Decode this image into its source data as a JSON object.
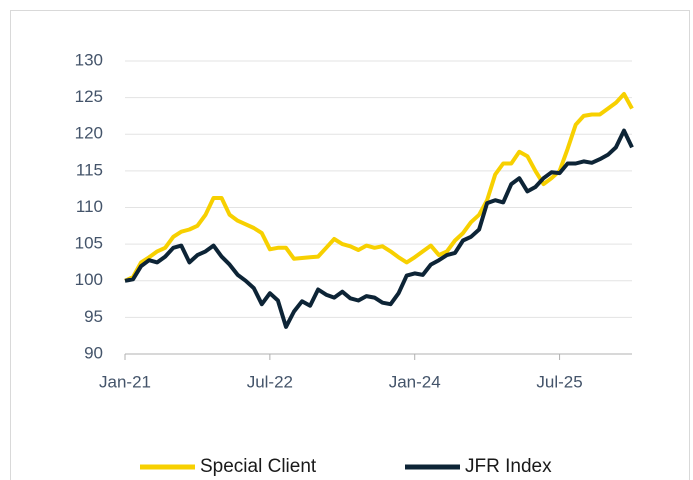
{
  "chart_data": {
    "type": "line",
    "categories": [
      "Jan-21",
      null,
      null,
      null,
      null,
      null,
      null,
      null,
      null,
      null,
      null,
      null,
      null,
      null,
      null,
      null,
      null,
      null,
      "Jul-22",
      null,
      null,
      null,
      null,
      null,
      null,
      null,
      null,
      null,
      null,
      null,
      null,
      null,
      null,
      null,
      null,
      null,
      "Jan-24",
      null,
      null,
      null,
      null,
      null,
      null,
      null,
      null,
      null,
      null,
      null,
      null,
      null,
      null,
      null,
      null,
      null,
      "Jul-25",
      null,
      null,
      null,
      null,
      null,
      null,
      null,
      null,
      null
    ],
    "series": [
      {
        "name": "Special Client",
        "color": "#f7d000",
        "values": [
          100,
          100.5,
          102.5,
          103.2,
          104,
          104.5,
          106,
          106.7,
          107,
          107.5,
          109,
          111.3,
          111.3,
          109,
          108.2,
          107.7,
          107.2,
          106.5,
          104.3,
          104.5,
          104.5,
          103,
          103.1,
          103.2,
          103.3,
          104.5,
          105.7,
          105,
          104.7,
          104.2,
          104.8,
          104.5,
          104.7,
          104,
          103.2,
          102.5,
          103.2,
          104,
          104.8,
          103.5,
          104,
          105.5,
          106.5,
          108,
          109,
          111,
          114.5,
          116,
          116,
          117.6,
          117,
          115,
          113.2,
          114,
          115,
          118,
          121.3,
          122.5,
          122.7,
          122.7,
          123.5,
          124.3,
          125.5,
          123.5
        ]
      },
      {
        "name": "JFR Index",
        "color": "#0d2436",
        "values": [
          100,
          100.2,
          102,
          102.8,
          102.5,
          103.3,
          104.5,
          104.8,
          102.5,
          103.5,
          104,
          104.8,
          103.3,
          102.2,
          100.8,
          100,
          99,
          96.8,
          98.3,
          97.3,
          93.7,
          95.8,
          97.2,
          96.6,
          98.8,
          98.1,
          97.7,
          98.5,
          97.6,
          97.3,
          97.9,
          97.7,
          97,
          96.8,
          98.3,
          100.7,
          101,
          100.8,
          102.2,
          102.8,
          103.5,
          103.8,
          105.5,
          106,
          107,
          110.6,
          111,
          110.7,
          113.2,
          114,
          112.2,
          112.8,
          114,
          114.8,
          114.7,
          116,
          116,
          116.3,
          116.1,
          116.6,
          117.2,
          118.2,
          120.5,
          118.2
        ]
      }
    ],
    "ylim": [
      90,
      130
    ],
    "yticks": [
      90,
      95,
      100,
      105,
      110,
      115,
      120,
      125,
      130
    ],
    "grid": true,
    "legend": "bottom"
  }
}
